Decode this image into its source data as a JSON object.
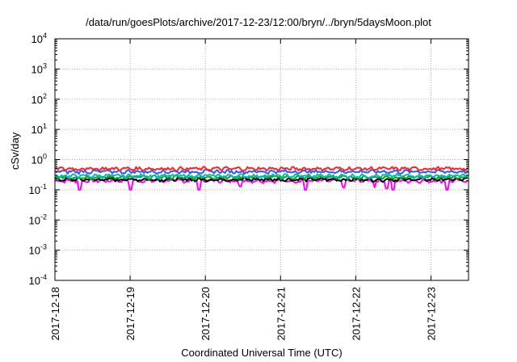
{
  "chart_data": {
    "type": "line",
    "title": "/data/run/goesPlots/archive/2017-12-23/12:00/bryn/../bryn/5daysMoon.plot",
    "xlabel": "Coordinated Universal Time (UTC)",
    "ylabel": "cSv/day",
    "yscale": "log",
    "ylim": [
      0.0001,
      10000
    ],
    "yticks": [
      {
        "value": 0.0001,
        "base": "10",
        "exp": "-4"
      },
      {
        "value": 0.001,
        "base": "10",
        "exp": "-3"
      },
      {
        "value": 0.01,
        "base": "10",
        "exp": "-2"
      },
      {
        "value": 0.1,
        "base": "10",
        "exp": "-1"
      },
      {
        "value": 1,
        "base": "10",
        "exp": "0"
      },
      {
        "value": 10,
        "base": "10",
        "exp": "1"
      },
      {
        "value": 100,
        "base": "10",
        "exp": "2"
      },
      {
        "value": 1000,
        "base": "10",
        "exp": "3"
      },
      {
        "value": 10000,
        "base": "10",
        "exp": "4"
      }
    ],
    "xlim": [
      "2017-12-18",
      "2017-12-23T12:00"
    ],
    "xticks": [
      "2017-12-18",
      "2017-12-19",
      "2017-12-20",
      "2017-12-21",
      "2017-12-22",
      "2017-12-23"
    ],
    "grid": true,
    "series": [
      {
        "color": "#ff00ff",
        "level": 0.2,
        "dips": [
          [
            "2017-12-18T08:00",
            0.1
          ],
          [
            "2017-12-19T00:00",
            0.1
          ],
          [
            "2017-12-19T22:00",
            0.1
          ],
          [
            "2017-12-20T11:00",
            0.13
          ],
          [
            "2017-12-21T08:00",
            0.1
          ],
          [
            "2017-12-21T20:00",
            0.12
          ],
          [
            "2017-12-22T06:00",
            0.12
          ],
          [
            "2017-12-22T10:00",
            0.11
          ],
          [
            "2017-12-22T12:00",
            0.1
          ],
          [
            "2017-12-23T05:00",
            0.1
          ]
        ]
      },
      {
        "color": "#000000",
        "level": 0.22
      },
      {
        "color": "#00aa00",
        "level": 0.26
      },
      {
        "color": "#00bbbb",
        "level": 0.29
      },
      {
        "color": "#3355ff",
        "level": 0.4
      },
      {
        "color": "#ff2222",
        "level": 0.5
      }
    ]
  }
}
